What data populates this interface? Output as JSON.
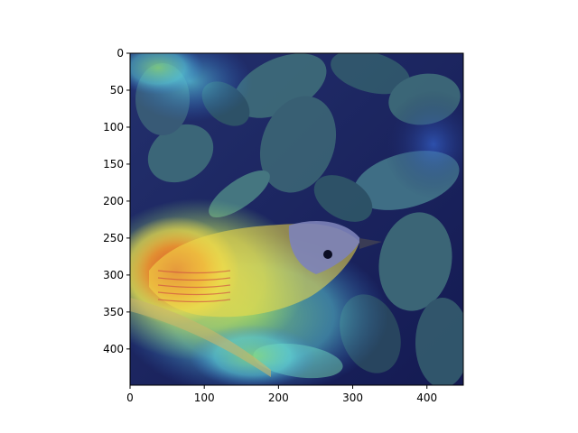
{
  "image": {
    "subject": "bird-on-branch-with-leaves",
    "overlay": "jet-colormap-heatmap",
    "colors": {
      "background_deep": "#1a1f5c",
      "leaf_teal": "#3f6d7a",
      "leaf_dark": "#28415a",
      "bird_gray": "#7d83b9",
      "heat_red": "#d8402a",
      "heat_orange": "#f08a2a",
      "heat_yellow": "#f3dc48",
      "heat_green": "#8fe07a",
      "heat_cyan": "#5fd7e0",
      "eye": "#0b0d22",
      "beak": "#3a3c55"
    }
  },
  "axes": {
    "x_ticks": [
      "0",
      "100",
      "200",
      "300",
      "400"
    ],
    "y_ticks": [
      "0",
      "50",
      "100",
      "150",
      "200",
      "250",
      "300",
      "350",
      "400"
    ],
    "x_tick_values": [
      0,
      100,
      200,
      300,
      400
    ],
    "y_tick_values": [
      0,
      50,
      100,
      150,
      200,
      250,
      300,
      350,
      400
    ],
    "xlim": [
      0,
      449
    ],
    "ylim": [
      449,
      0
    ]
  }
}
